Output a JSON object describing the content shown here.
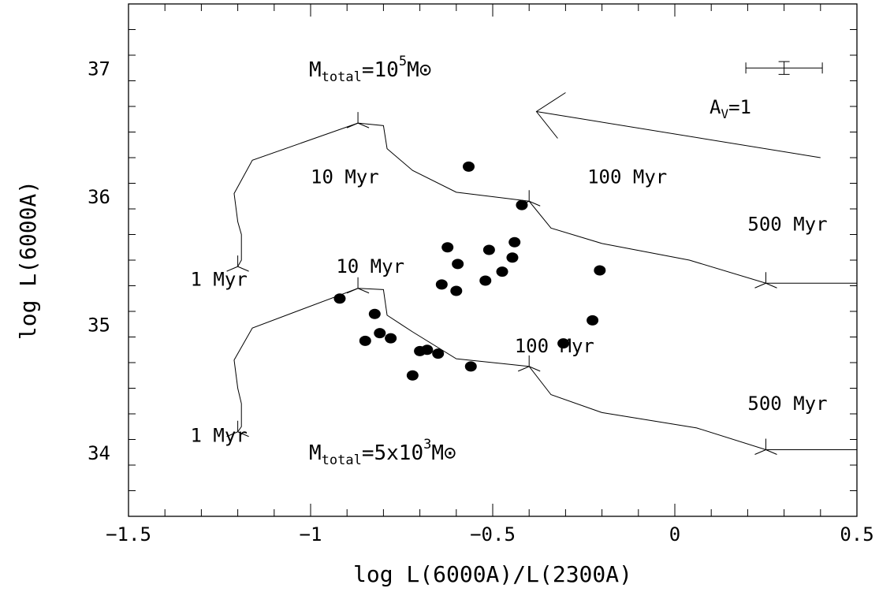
{
  "chart_data": {
    "type": "scatter",
    "xlabel": "log L(6000A)/L(2300A)",
    "ylabel": "log L(6000A)",
    "xlim": [
      -1.5,
      0.5
    ],
    "ylim": [
      33.5,
      37.5
    ],
    "x_ticks": [
      {
        "value": -1.5,
        "label": "−1.5"
      },
      {
        "value": -1.0,
        "label": "−1"
      },
      {
        "value": -0.5,
        "label": "−0.5"
      },
      {
        "value": 0.0,
        "label": "0"
      },
      {
        "value": 0.5,
        "label": "0.5"
      }
    ],
    "y_ticks": [
      {
        "value": 34,
        "label": "34"
      },
      {
        "value": 35,
        "label": "35"
      },
      {
        "value": 36,
        "label": "36"
      },
      {
        "value": 37,
        "label": "37"
      }
    ],
    "grid": false,
    "legend": "none",
    "points": [
      {
        "x": -0.566,
        "y": 36.23
      },
      {
        "x": -0.42,
        "y": 35.93
      },
      {
        "x": -0.624,
        "y": 35.6
      },
      {
        "x": -0.51,
        "y": 35.58
      },
      {
        "x": -0.44,
        "y": 35.64
      },
      {
        "x": -0.596,
        "y": 35.47
      },
      {
        "x": -0.446,
        "y": 35.52
      },
      {
        "x": -0.474,
        "y": 35.41
      },
      {
        "x": -0.52,
        "y": 35.34
      },
      {
        "x": -0.64,
        "y": 35.31
      },
      {
        "x": -0.6,
        "y": 35.26
      },
      {
        "x": -0.206,
        "y": 35.42
      },
      {
        "x": -0.92,
        "y": 35.2
      },
      {
        "x": -0.824,
        "y": 35.08
      },
      {
        "x": -0.81,
        "y": 34.93
      },
      {
        "x": -0.85,
        "y": 34.87
      },
      {
        "x": -0.78,
        "y": 34.89
      },
      {
        "x": -0.226,
        "y": 35.03
      },
      {
        "x": -0.306,
        "y": 34.85
      },
      {
        "x": -0.68,
        "y": 34.8
      },
      {
        "x": -0.7,
        "y": 34.79
      },
      {
        "x": -0.65,
        "y": 34.77
      },
      {
        "x": -0.56,
        "y": 34.67
      },
      {
        "x": -0.72,
        "y": 34.6
      }
    ],
    "tracks": [
      {
        "mass_label": "M_total=10^5 M☉",
        "points": [
          [
            -1.2,
            35.45
          ],
          [
            -1.19,
            35.5
          ],
          [
            -1.19,
            35.7
          ],
          [
            -1.2,
            35.8
          ],
          [
            -1.21,
            36.02
          ],
          [
            -1.16,
            36.28
          ],
          [
            -0.87,
            36.57
          ],
          [
            -0.8,
            36.55
          ],
          [
            -0.79,
            36.37
          ],
          [
            -0.72,
            36.2
          ],
          [
            -0.6,
            36.03
          ],
          [
            -0.4,
            35.96
          ],
          [
            -0.34,
            35.75
          ],
          [
            -0.2,
            35.63
          ],
          [
            0.04,
            35.5
          ],
          [
            0.25,
            35.32
          ],
          [
            0.5,
            35.32
          ]
        ],
        "markers": [
          [
            -1.2,
            35.45
          ],
          [
            -0.87,
            36.57
          ],
          [
            -0.4,
            35.96
          ],
          [
            0.25,
            35.32
          ]
        ]
      },
      {
        "mass_label": "M_total=5x10^3 M☉",
        "points": [
          [
            -1.2,
            34.16
          ],
          [
            -1.19,
            34.2
          ],
          [
            -1.19,
            34.38
          ],
          [
            -1.2,
            34.5
          ],
          [
            -1.21,
            34.72
          ],
          [
            -1.16,
            34.97
          ],
          [
            -0.87,
            35.28
          ],
          [
            -0.8,
            35.27
          ],
          [
            -0.79,
            35.07
          ],
          [
            -0.72,
            34.94
          ],
          [
            -0.6,
            34.73
          ],
          [
            -0.4,
            34.67
          ],
          [
            -0.34,
            34.45
          ],
          [
            -0.2,
            34.31
          ],
          [
            0.06,
            34.19
          ],
          [
            0.25,
            34.02
          ],
          [
            0.5,
            34.02
          ]
        ],
        "markers": [
          [
            -1.2,
            34.16
          ],
          [
            -0.87,
            35.28
          ],
          [
            -0.4,
            34.67
          ],
          [
            0.25,
            34.02
          ]
        ]
      }
    ],
    "age_labels": [
      {
        "text": "10 Myr",
        "x": -1.0,
        "y": 36.15
      },
      {
        "text": "100 Myr",
        "x": -0.24,
        "y": 36.15
      },
      {
        "text": "500 Myr",
        "x": 0.2,
        "y": 35.78
      },
      {
        "text": "1 Myr",
        "x": -1.33,
        "y": 35.35
      },
      {
        "text": "10 Myr",
        "x": -0.93,
        "y": 35.45
      },
      {
        "text": "100 Myr",
        "x": -0.44,
        "y": 34.83
      },
      {
        "text": "500 Myr",
        "x": 0.2,
        "y": 34.38
      },
      {
        "text": "1 Myr",
        "x": -1.33,
        "y": 34.13
      }
    ],
    "mass_label_1": {
      "prefix": "M",
      "sub": "total",
      "mid": "=10",
      "sup": "5",
      "suffix": "M⊙"
    },
    "mass_label_2": {
      "prefix": "M",
      "sub": "total",
      "mid": "=5x10",
      "sup": "3",
      "suffix": "M⊙"
    },
    "extinction_vector": {
      "label_main": "A",
      "label_sub": "V",
      "label_tail": "=1",
      "from": [
        0.4,
        36.3
      ],
      "to": [
        -0.38,
        36.66
      ]
    },
    "error_bar": {
      "x": 0.3,
      "y": 37.0,
      "x_err": 0.105,
      "y_err": 0.05
    }
  }
}
